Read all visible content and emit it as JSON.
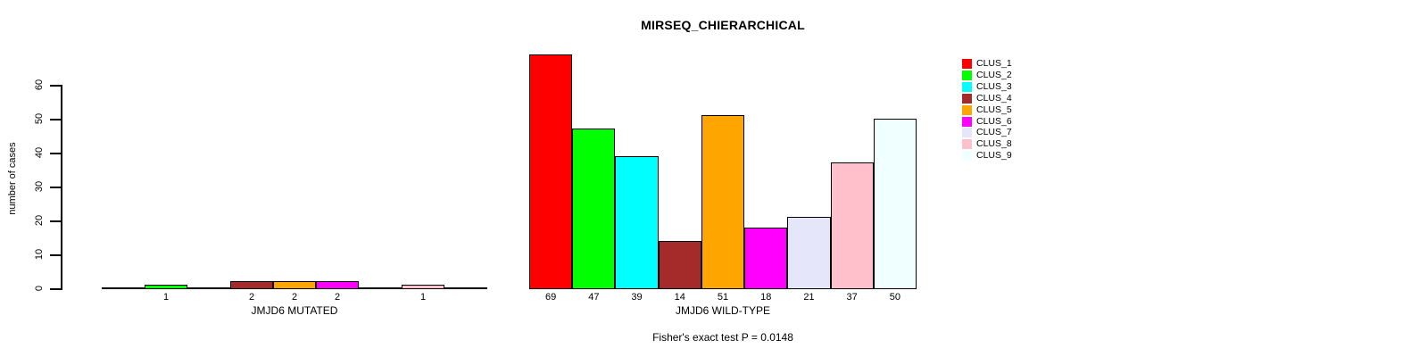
{
  "chart_data": {
    "type": "bar",
    "title": "MIRSEQ_CHIERARCHICAL",
    "ylabel": "number of cases",
    "ylim": [
      0,
      60
    ],
    "yticks": [
      0,
      10,
      20,
      30,
      40,
      50,
      60
    ],
    "grid": false,
    "background": "#ffffff",
    "categories": [
      "CLUS_1",
      "CLUS_2",
      "CLUS_3",
      "CLUS_4",
      "CLUS_5",
      "CLUS_6",
      "CLUS_7",
      "CLUS_8",
      "CLUS_9"
    ],
    "palette": [
      "#FF0000",
      "#00FF00",
      "#00FFFF",
      "#A52A2A",
      "#FFA500",
      "#FF00FF",
      "#E6E6FA",
      "#FFC0CB",
      "#F0FFFF"
    ],
    "bar_border_color": "#000000",
    "panels": [
      {
        "xlabel": "JMJD6 MUTATED",
        "values": [
          0,
          1,
          0,
          2,
          2,
          2,
          0,
          1,
          0
        ]
      },
      {
        "xlabel": "JMJD6 WILD-TYPE",
        "values": [
          69,
          47,
          39,
          14,
          51,
          18,
          21,
          37,
          50
        ]
      }
    ],
    "legend_position": "right",
    "legend_labels": [
      "CLUS_1",
      "CLUS_2",
      "CLUS_3",
      "CLUS_4",
      "CLUS_5",
      "CLUS_6",
      "CLUS_7",
      "CLUS_8",
      "CLUS_9"
    ],
    "annotation": "Fisher's exact test P = 0.0148"
  }
}
